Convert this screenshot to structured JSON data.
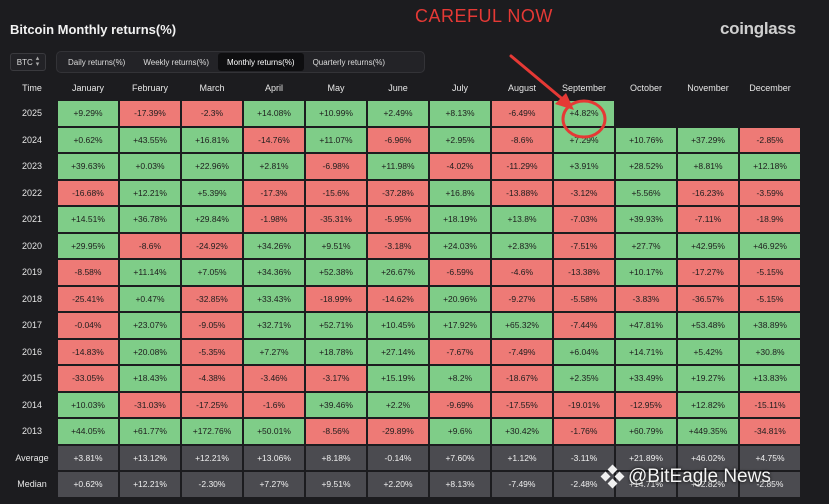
{
  "header": {
    "title": "Bitcoin Monthly returns(%)",
    "warning": "CAREFUL NOW",
    "brand": "coinglass"
  },
  "asset_selector": {
    "value": "BTC"
  },
  "tabs": [
    {
      "label": "Daily returns(%)",
      "active": false
    },
    {
      "label": "Weekly returns(%)",
      "active": false
    },
    {
      "label": "Monthly returns(%)",
      "active": true
    },
    {
      "label": "Quarterly returns(%)",
      "active": false
    }
  ],
  "table": {
    "corner": "Time",
    "months": [
      "January",
      "February",
      "March",
      "April",
      "May",
      "June",
      "July",
      "August",
      "September",
      "October",
      "November",
      "December"
    ],
    "rows": [
      {
        "year": "2025",
        "values": [
          "+9.29%",
          "-17.39%",
          "-2.3%",
          "+14.08%",
          "+10.99%",
          "+2.49%",
          "+8.13%",
          "-6.49%",
          "+4.82%",
          "",
          "",
          ""
        ]
      },
      {
        "year": "2024",
        "values": [
          "+0.62%",
          "+43.55%",
          "+16.81%",
          "-14.76%",
          "+11.07%",
          "-6.96%",
          "+2.95%",
          "-8.6%",
          "+7.29%",
          "+10.76%",
          "+37.29%",
          "-2.85%"
        ]
      },
      {
        "year": "2023",
        "values": [
          "+39.63%",
          "+0.03%",
          "+22.96%",
          "+2.81%",
          "-6.98%",
          "+11.98%",
          "-4.02%",
          "-11.29%",
          "+3.91%",
          "+28.52%",
          "+8.81%",
          "+12.18%"
        ]
      },
      {
        "year": "2022",
        "values": [
          "-16.68%",
          "+12.21%",
          "+5.39%",
          "-17.3%",
          "-15.6%",
          "-37.28%",
          "+16.8%",
          "-13.88%",
          "-3.12%",
          "+5.56%",
          "-16.23%",
          "-3.59%"
        ]
      },
      {
        "year": "2021",
        "values": [
          "+14.51%",
          "+36.78%",
          "+29.84%",
          "-1.98%",
          "-35.31%",
          "-5.95%",
          "+18.19%",
          "+13.8%",
          "-7.03%",
          "+39.93%",
          "-7.11%",
          "-18.9%"
        ]
      },
      {
        "year": "2020",
        "values": [
          "+29.95%",
          "-8.6%",
          "-24.92%",
          "+34.26%",
          "+9.51%",
          "-3.18%",
          "+24.03%",
          "+2.83%",
          "-7.51%",
          "+27.7%",
          "+42.95%",
          "+46.92%"
        ]
      },
      {
        "year": "2019",
        "values": [
          "-8.58%",
          "+11.14%",
          "+7.05%",
          "+34.36%",
          "+52.38%",
          "+26.67%",
          "-6.59%",
          "-4.6%",
          "-13.38%",
          "+10.17%",
          "-17.27%",
          "-5.15%"
        ]
      },
      {
        "year": "2018",
        "values": [
          "-25.41%",
          "+0.47%",
          "-32.85%",
          "+33.43%",
          "-18.99%",
          "-14.62%",
          "+20.96%",
          "-9.27%",
          "-5.58%",
          "-3.83%",
          "-36.57%",
          "-5.15%"
        ]
      },
      {
        "year": "2017",
        "values": [
          "-0.04%",
          "+23.07%",
          "-9.05%",
          "+32.71%",
          "+52.71%",
          "+10.45%",
          "+17.92%",
          "+65.32%",
          "-7.44%",
          "+47.81%",
          "+53.48%",
          "+38.89%"
        ]
      },
      {
        "year": "2016",
        "values": [
          "-14.83%",
          "+20.08%",
          "-5.35%",
          "+7.27%",
          "+18.78%",
          "+27.14%",
          "-7.67%",
          "-7.49%",
          "+6.04%",
          "+14.71%",
          "+5.42%",
          "+30.8%"
        ]
      },
      {
        "year": "2015",
        "values": [
          "-33.05%",
          "+18.43%",
          "-4.38%",
          "-3.46%",
          "-3.17%",
          "+15.19%",
          "+8.2%",
          "-18.67%",
          "+2.35%",
          "+33.49%",
          "+19.27%",
          "+13.83%"
        ]
      },
      {
        "year": "2014",
        "values": [
          "+10.03%",
          "-31.03%",
          "-17.25%",
          "-1.6%",
          "+39.46%",
          "+2.2%",
          "-9.69%",
          "-17.55%",
          "-19.01%",
          "-12.95%",
          "+12.82%",
          "-15.11%"
        ]
      },
      {
        "year": "2013",
        "values": [
          "+44.05%",
          "+61.77%",
          "+172.76%",
          "+50.01%",
          "-8.56%",
          "-29.89%",
          "+9.6%",
          "+30.42%",
          "-1.76%",
          "+60.79%",
          "+449.35%",
          "-34.81%"
        ]
      }
    ],
    "stats": [
      {
        "label": "Average",
        "values": [
          "+3.81%",
          "+13.12%",
          "+12.21%",
          "+13.06%",
          "+8.18%",
          "-0.14%",
          "+7.60%",
          "+1.12%",
          "-3.11%",
          "+21.89%",
          "+46.02%",
          "+4.75%"
        ]
      },
      {
        "label": "Median",
        "values": [
          "+0.62%",
          "+12.21%",
          "-2.30%",
          "+7.27%",
          "+9.51%",
          "+2.20%",
          "+8.13%",
          "-7.49%",
          "-2.48%",
          "+14.71%",
          "+12.82%",
          "-2.85%"
        ]
      }
    ]
  },
  "annotation": {
    "color": "#e53935",
    "target_cell": "2025-September"
  },
  "watermark": {
    "text": "@BitEagle News"
  },
  "colors": {
    "positive": "#7fcd88",
    "negative": "#ee7a76",
    "stat": "#4b4b50",
    "background": "#1c1c1f"
  }
}
